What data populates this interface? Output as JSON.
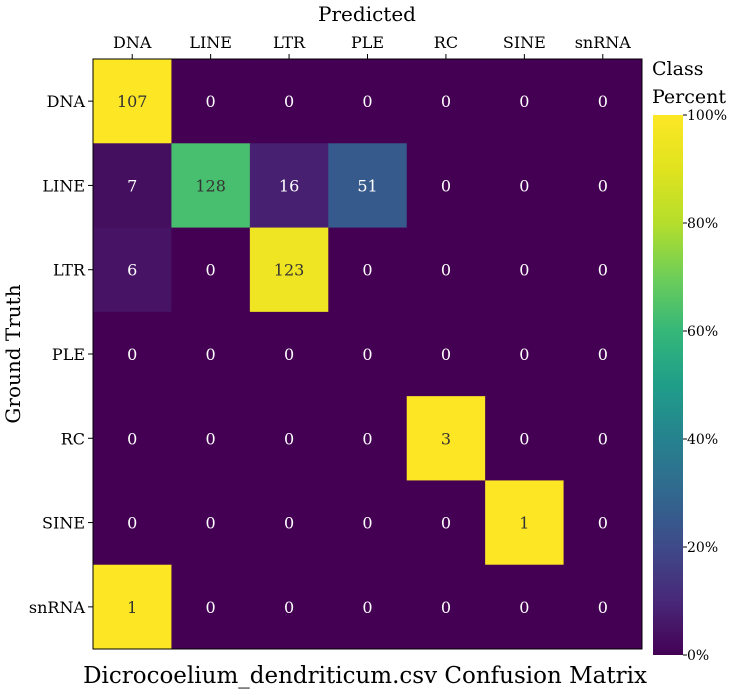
{
  "chart_data": {
    "type": "heatmap",
    "title": "Dicrocoelium_dendriticum.csv Confusion Matrix",
    "xlabel": "Predicted",
    "ylabel": "Ground Truth",
    "x_categories": [
      "DNA",
      "LINE",
      "LTR",
      "PLE",
      "RC",
      "SINE",
      "snRNA"
    ],
    "y_categories": [
      "DNA",
      "LINE",
      "LTR",
      "PLE",
      "RC",
      "SINE",
      "snRNA"
    ],
    "values": [
      [
        107,
        0,
        0,
        0,
        0,
        0,
        0
      ],
      [
        7,
        128,
        16,
        51,
        0,
        0,
        0
      ],
      [
        6,
        0,
        123,
        0,
        0,
        0,
        0
      ],
      [
        0,
        0,
        0,
        0,
        0,
        0,
        0
      ],
      [
        0,
        0,
        0,
        0,
        3,
        0,
        0
      ],
      [
        0,
        0,
        0,
        0,
        0,
        1,
        0
      ],
      [
        1,
        0,
        0,
        0,
        0,
        0,
        0
      ]
    ],
    "colorbar": {
      "title_line1": "Class",
      "title_line2": "Percent",
      "range": [
        0,
        100
      ],
      "ticks": [
        0,
        20,
        40,
        60,
        80,
        100
      ],
      "tick_labels": [
        "0%",
        "20%",
        "40%",
        "60%",
        "80%",
        "100%"
      ],
      "colormap": "viridis"
    },
    "legend_placement": "right",
    "grid": false
  }
}
